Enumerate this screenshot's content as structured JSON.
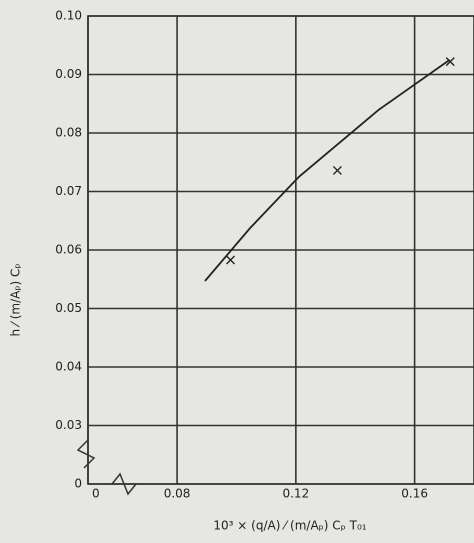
{
  "chart_data": {
    "type": "line",
    "x_label": "10³ × (q/A) ⁄ (m/Aₚ) Cₚ T₀₁",
    "y_label": "h ⁄ (m/Aₚ) Cₚ",
    "xlim": [
      0.05,
      0.18
    ],
    "ylim": [
      0.02,
      0.1
    ],
    "xticks": [
      0,
      0.08,
      0.12,
      0.16
    ],
    "yticks": [
      0,
      0.03,
      0.04,
      0.05,
      0.06,
      0.07,
      0.08,
      0.09,
      {
        "value": 0.1,
        "label": "0.10"
      }
    ],
    "axis_break": true,
    "grid": true,
    "series": [
      {
        "color": "#222222",
        "marker": "line",
        "x": [
          0.0894,
          0.1045,
          0.121,
          0.148,
          0.1718
        ],
        "values": [
          0.0547,
          0.0637,
          0.0725,
          0.084,
          0.0925
        ]
      },
      {
        "color": "#222222",
        "marker": "x",
        "x": [
          0.098,
          0.134,
          0.172
        ],
        "values": [
          0.0583,
          0.0736,
          0.0922
        ]
      }
    ]
  }
}
